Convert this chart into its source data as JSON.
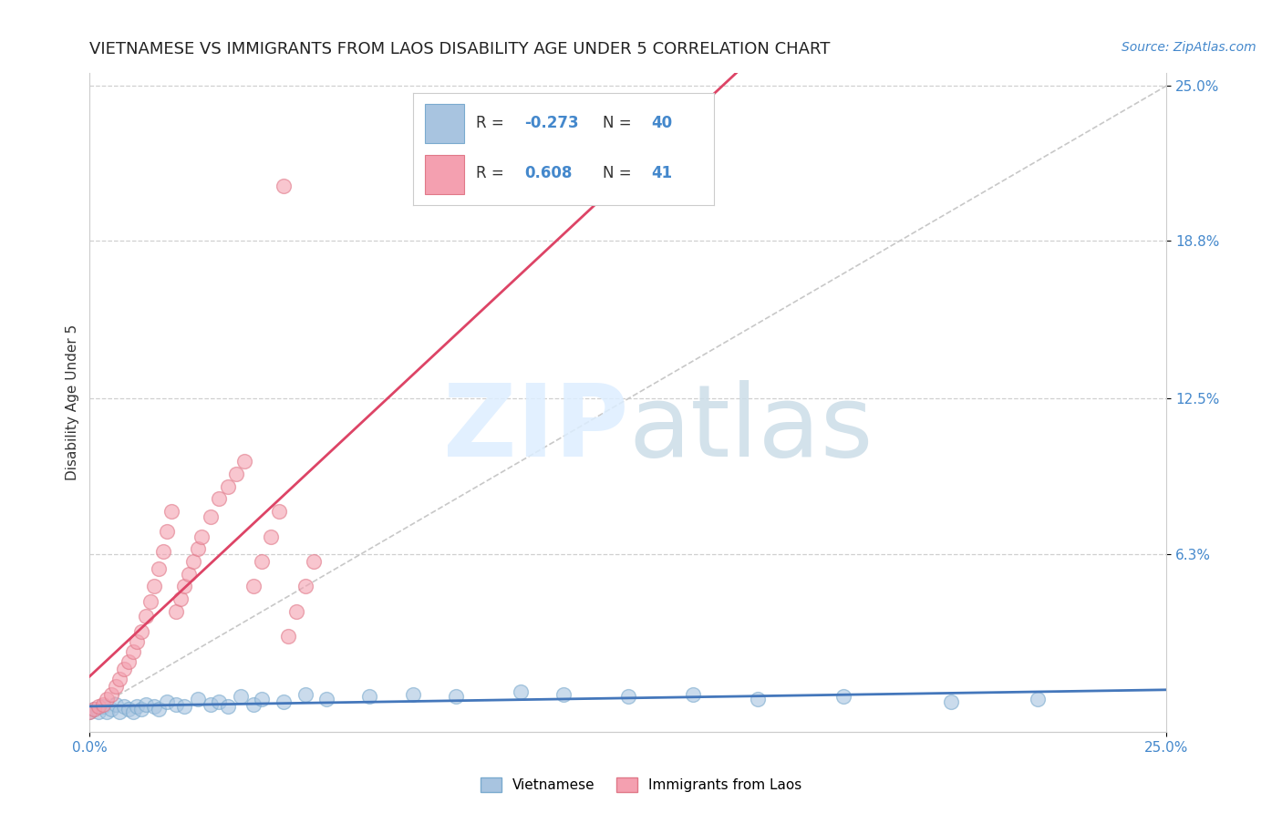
{
  "title": "VIETNAMESE VS IMMIGRANTS FROM LAOS DISABILITY AGE UNDER 5 CORRELATION CHART",
  "source": "Source: ZipAtlas.com",
  "ylabel": "Disability Age Under 5",
  "xlim": [
    0.0,
    0.25
  ],
  "ylim": [
    -0.008,
    0.255
  ],
  "ytick_right_labels": [
    "25.0%",
    "18.8%",
    "12.5%",
    "6.3%"
  ],
  "ytick_right_values": [
    0.25,
    0.188,
    0.125,
    0.063
  ],
  "blue_color": "#a8c4e0",
  "pink_color": "#f4a0b0",
  "blue_scatter_edge": "#7aaace",
  "pink_scatter_edge": "#e07888",
  "blue_line_color": "#4477bb",
  "pink_line_color": "#dd4466",
  "diag_line_color": "#c8c8c8",
  "grid_color": "#d0d0d0",
  "background_color": "#ffffff",
  "title_fontsize": 13,
  "legend_R_blue": "-0.273",
  "legend_N_blue": "40",
  "legend_R_pink": "0.608",
  "legend_N_pink": "41",
  "viet_x": [
    0.0,
    0.001,
    0.002,
    0.003,
    0.004,
    0.005,
    0.006,
    0.007,
    0.008,
    0.009,
    0.01,
    0.011,
    0.012,
    0.013,
    0.015,
    0.016,
    0.018,
    0.02,
    0.022,
    0.025,
    0.028,
    0.03,
    0.032,
    0.035,
    0.038,
    0.04,
    0.045,
    0.05,
    0.055,
    0.065,
    0.075,
    0.085,
    0.1,
    0.11,
    0.125,
    0.14,
    0.155,
    0.175,
    0.2,
    0.22
  ],
  "viet_y": [
    0.0,
    0.001,
    0.0,
    0.002,
    0.0,
    0.001,
    0.003,
    0.0,
    0.002,
    0.001,
    0.0,
    0.002,
    0.001,
    0.003,
    0.002,
    0.001,
    0.004,
    0.003,
    0.002,
    0.005,
    0.003,
    0.004,
    0.002,
    0.006,
    0.003,
    0.005,
    0.004,
    0.007,
    0.005,
    0.006,
    0.007,
    0.006,
    0.008,
    0.007,
    0.006,
    0.007,
    0.005,
    0.006,
    0.004,
    0.005
  ],
  "laos_x": [
    0.0,
    0.001,
    0.002,
    0.003,
    0.004,
    0.005,
    0.006,
    0.007,
    0.008,
    0.009,
    0.01,
    0.011,
    0.012,
    0.013,
    0.014,
    0.015,
    0.016,
    0.017,
    0.018,
    0.019,
    0.02,
    0.021,
    0.022,
    0.023,
    0.024,
    0.025,
    0.026,
    0.028,
    0.03,
    0.032,
    0.034,
    0.036,
    0.038,
    0.04,
    0.042,
    0.044,
    0.046,
    0.048,
    0.05,
    0.052,
    0.045
  ],
  "laos_y": [
    0.0,
    0.001,
    0.002,
    0.003,
    0.005,
    0.007,
    0.01,
    0.013,
    0.017,
    0.02,
    0.024,
    0.028,
    0.032,
    0.038,
    0.044,
    0.05,
    0.057,
    0.064,
    0.072,
    0.08,
    0.04,
    0.045,
    0.05,
    0.055,
    0.06,
    0.065,
    0.07,
    0.078,
    0.085,
    0.09,
    0.095,
    0.1,
    0.05,
    0.06,
    0.07,
    0.08,
    0.03,
    0.04,
    0.05,
    0.06,
    0.21
  ]
}
